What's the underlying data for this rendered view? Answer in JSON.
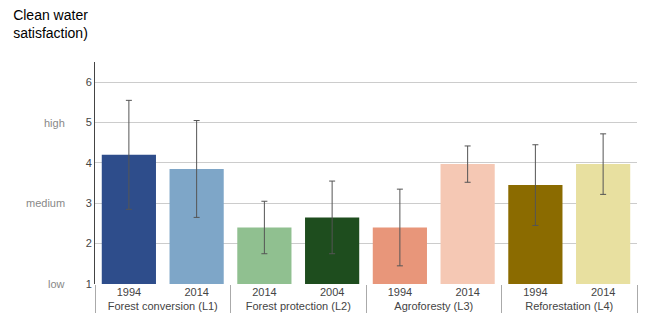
{
  "chart_data": {
    "type": "bar",
    "title": [
      "Clean water",
      "satisfaction)"
    ],
    "categories": [
      [
        "Forest conversion (L1)",
        "1994"
      ],
      [
        "Forest conversion (L1)",
        "2014"
      ],
      [
        "Forest protection (L2)",
        "2004"
      ],
      [
        "Forest protection (L2)",
        "2014"
      ],
      [
        "Agroforesty (L3)",
        "1994"
      ],
      [
        "Agroforesty (L3)",
        "2014"
      ],
      [
        "Reforestation (L4)",
        "1994"
      ],
      [
        "Reforestation (L4)",
        "2014"
      ]
    ],
    "values": [
      4.2,
      3.85,
      2.65,
      2.4,
      2.4,
      3.97,
      3.45,
      3.97
    ],
    "errors": [
      1.35,
      1.2,
      0.9,
      0.65,
      0.95,
      0.45,
      1.0,
      0.75
    ],
    "colors": [
      "#2E4D8B",
      "#7EA6C8",
      "#1E4D1E",
      "#90C090",
      "#E8967A",
      "#F5C8B4",
      "#8B6B00",
      "#E8E0A0"
    ],
    "ylim": [
      1,
      6.5
    ],
    "yticks": [
      1,
      2,
      3,
      4,
      5,
      6
    ],
    "grid": true,
    "annotations": [
      {
        "text": "low",
        "y": 1
      },
      {
        "text": "medium",
        "y": 3
      },
      {
        "text": "high",
        "y": 5
      }
    ]
  }
}
